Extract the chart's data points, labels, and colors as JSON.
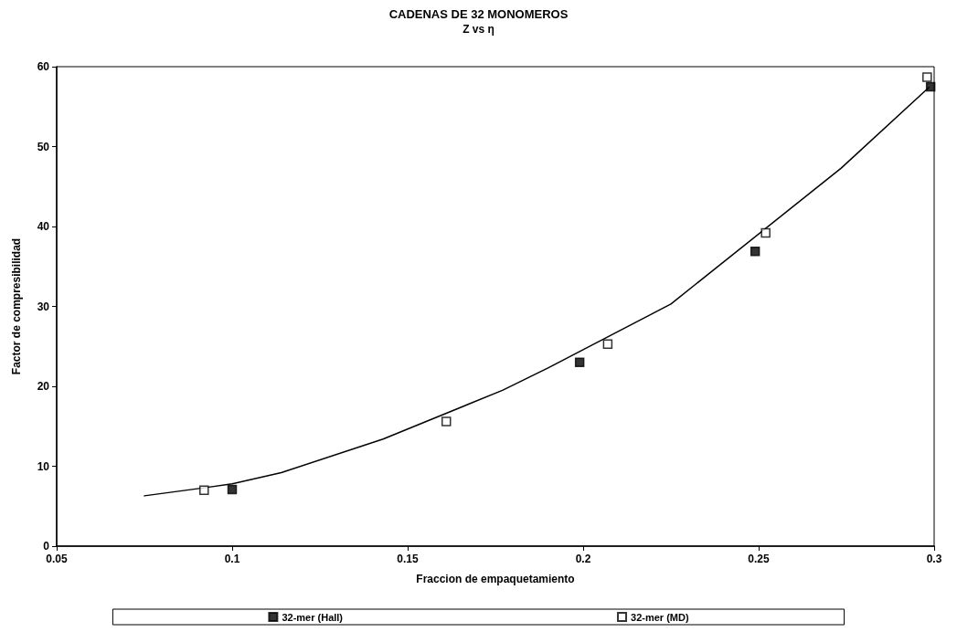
{
  "chart_data": {
    "type": "scatter",
    "title": "CADENAS DE 32 MONOMEROS",
    "subtitle": "Z vs η",
    "xlabel": "Fraccion de empaquetamiento",
    "ylabel": "Factor de compresibilidad",
    "series": [
      {
        "name": "32-mer (Hall)",
        "color": "#000000",
        "marker": "square",
        "x": [
          0.1,
          0.199,
          0.249,
          0.299
        ],
        "values": [
          7.1,
          23.0,
          36.9,
          57.5
        ]
      },
      {
        "name": "32-mer (MD)",
        "color": "#ffffff",
        "marker": "square",
        "x": [
          0.092,
          0.161,
          0.207,
          0.252,
          0.298
        ],
        "values": [
          7.0,
          15.6,
          25.3,
          39.2,
          58.7
        ]
      },
      {
        "type": "line",
        "color": "#000000",
        "marker": "none",
        "line_style": "solid",
        "x": [
          0.075,
          0.092,
          0.1,
          0.114,
          0.143,
          0.177,
          0.19,
          0.225,
          0.2735,
          0.2985
        ],
        "values": [
          6.3,
          7.3,
          7.8,
          9.2,
          13.4,
          19.5,
          22.3,
          30.3,
          47.3,
          57.4
        ]
      }
    ],
    "xlim": [
      0.05,
      0.3
    ],
    "xticks": [
      0.05,
      0.1,
      0.15,
      0.2,
      0.25,
      0.3
    ],
    "ylim": [
      0,
      60
    ],
    "yticks": [
      0,
      10,
      20,
      30,
      40,
      50,
      60
    ],
    "grid": false,
    "legend": "bottom"
  }
}
